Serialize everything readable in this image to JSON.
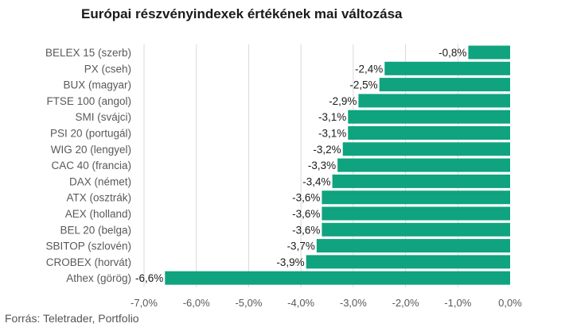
{
  "chart_data": {
    "type": "bar",
    "orientation": "horizontal",
    "title": "Európai részvényindexek értékének mai változása",
    "source": "Forrás: Teletrader, Portfolio",
    "categories": [
      "BELEX 15 (szerb)",
      "PX (cseh)",
      "BUX (magyar)",
      "FTSE 100 (angol)",
      "SMI (svájci)",
      "PSI 20 (portugál)",
      "WIG 20 (lengyel)",
      "CAC 40 (francia)",
      "DAX (német)",
      "ATX (osztrák)",
      "AEX (holland)",
      "BEL 20 (belga)",
      "SBITOP (szlovén)",
      "CROBEX (horvát)",
      "Athex (görög)"
    ],
    "values": [
      -0.8,
      -2.4,
      -2.5,
      -2.9,
      -3.1,
      -3.1,
      -3.2,
      -3.3,
      -3.4,
      -3.6,
      -3.6,
      -3.6,
      -3.7,
      -3.9,
      -6.6
    ],
    "value_labels": [
      "-0,8%",
      "-2,4%",
      "-2,5%",
      "-2,9%",
      "-3,1%",
      "-3,1%",
      "-3,2%",
      "-3,3%",
      "-3,4%",
      "-3,6%",
      "-3,6%",
      "-3,6%",
      "-3,7%",
      "-3,9%",
      "-6,6%"
    ],
    "xlim": [
      -7.0,
      0.0
    ],
    "x_ticks": [
      -7.0,
      -6.0,
      -5.0,
      -4.0,
      -3.0,
      -2.0,
      -1.0,
      0.0
    ],
    "x_tick_labels": [
      "-7,0%",
      "-6,0%",
      "-5,0%",
      "-4,0%",
      "-3,0%",
      "-2,0%",
      "-1,0%",
      "0,0%"
    ],
    "grid": true,
    "legend": "none",
    "colors": {
      "bar": "#0fa37f",
      "grid": "#d9d9d9",
      "text": "#595959"
    }
  }
}
